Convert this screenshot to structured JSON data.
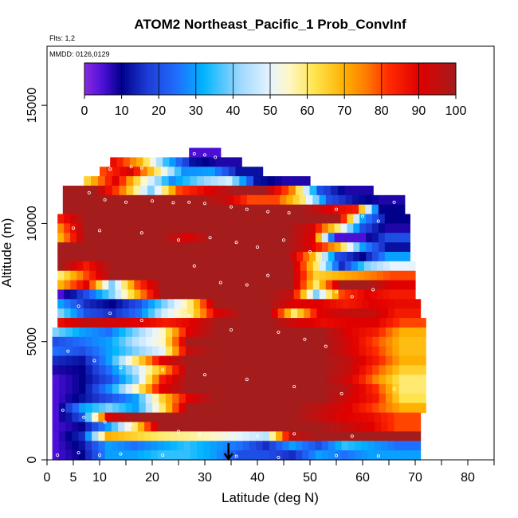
{
  "chart_data": {
    "type": "heatmap",
    "title": "ATOM2 Northeast_Pacific_1 Prob_ConvInf",
    "flights_label": "Flts: 1,2",
    "dates_label": "MMDD: 0126,0129",
    "xlabel": "Latitude (deg N)",
    "ylabel": "Altitude (m)",
    "xlim": [
      0,
      85
    ],
    "ylim": [
      0,
      17500
    ],
    "x_ticks": [
      0,
      5,
      10,
      20,
      30,
      40,
      50,
      60,
      70,
      80
    ],
    "x_minor_ticks": [
      15,
      25,
      35,
      45,
      55,
      65,
      75,
      85
    ],
    "y_ticks": [
      0,
      5000,
      10000,
      15000
    ],
    "colorbar": {
      "min": 0,
      "max": 100,
      "ticks": [
        0,
        10,
        20,
        30,
        40,
        50,
        60,
        70,
        80,
        90,
        100
      ]
    },
    "arrow_latitude": 34.5,
    "grid": false,
    "colorscale": [
      [
        0,
        "#8a2be2"
      ],
      [
        5,
        "#4b0fd6"
      ],
      [
        10,
        "#00008b"
      ],
      [
        17,
        "#1e3cd6"
      ],
      [
        25,
        "#1f6fff"
      ],
      [
        32,
        "#00b4ff"
      ],
      [
        42,
        "#9fd8ff"
      ],
      [
        50,
        "#e6f4ff"
      ],
      [
        55,
        "#fff7c8"
      ],
      [
        62,
        "#ffe44d"
      ],
      [
        70,
        "#ffb000"
      ],
      [
        76,
        "#ff7a00"
      ],
      [
        82,
        "#ff2a00"
      ],
      [
        90,
        "#e00000"
      ],
      [
        100,
        "#a51c1c"
      ]
    ],
    "rows": [
      {
        "alt": 12800,
        "lat": [
          27,
          33
        ],
        "values": [
          5,
          5
        ]
      },
      {
        "alt": 12400,
        "lat": [
          12,
          37
        ],
        "values": [
          88,
          70,
          35,
          12,
          8
        ]
      },
      {
        "alt": 12000,
        "lat": [
          10,
          41
        ],
        "values": [
          80,
          92,
          60,
          28,
          30,
          12
        ]
      },
      {
        "alt": 11600,
        "lat": [
          7,
          50
        ],
        "values": [
          65,
          90,
          55,
          28,
          40,
          48,
          12,
          8
        ]
      },
      {
        "alt": 11200,
        "lat": [
          3,
          62
        ],
        "values": [
          100,
          100,
          75,
          40,
          80,
          90,
          100,
          100,
          75,
          20,
          8
        ]
      },
      {
        "alt": 10800,
        "lat": [
          3,
          68
        ],
        "values": [
          100,
          100,
          100,
          100,
          100,
          100,
          95,
          80,
          80,
          60,
          20,
          12,
          8
        ]
      },
      {
        "alt": 10400,
        "lat": [
          3,
          68
        ],
        "values": [
          100,
          100,
          100,
          100,
          100,
          100,
          100,
          100,
          100,
          100,
          90,
          85,
          10
        ]
      },
      {
        "alt": 10000,
        "lat": [
          2,
          69
        ],
        "values": [
          85,
          100,
          100,
          100,
          100,
          100,
          100,
          100,
          100,
          100,
          100,
          100,
          30,
          10
        ]
      },
      {
        "alt": 9600,
        "lat": [
          2,
          69
        ],
        "values": [
          75,
          100,
          100,
          100,
          100,
          100,
          100,
          100,
          100,
          100,
          92,
          60,
          20,
          8
        ]
      },
      {
        "alt": 9200,
        "lat": [
          2,
          69
        ],
        "values": [
          70,
          100,
          100,
          100,
          100,
          90,
          100,
          100,
          100,
          100,
          90,
          5,
          5,
          20
        ]
      },
      {
        "alt": 8800,
        "lat": [
          2,
          69
        ],
        "values": [
          100,
          100,
          100,
          100,
          100,
          100,
          100,
          100,
          100,
          100,
          90,
          70,
          30,
          12
        ]
      },
      {
        "alt": 8400,
        "lat": [
          2,
          69
        ],
        "values": [
          100,
          100,
          100,
          100,
          100,
          100,
          100,
          100,
          100,
          100,
          70,
          20,
          10,
          30
        ]
      },
      {
        "alt": 8000,
        "lat": [
          2,
          70
        ],
        "values": [
          100,
          85,
          100,
          100,
          100,
          100,
          100,
          100,
          100,
          100,
          60,
          15,
          40,
          50
        ]
      },
      {
        "alt": 7600,
        "lat": [
          2,
          70
        ],
        "values": [
          60,
          80,
          100,
          100,
          100,
          100,
          100,
          100,
          100,
          100,
          65,
          70,
          75,
          80
        ]
      },
      {
        "alt": 7200,
        "lat": [
          2,
          70
        ],
        "values": [
          70,
          90,
          40,
          80,
          100,
          100,
          100,
          100,
          100,
          100,
          60,
          100,
          100,
          90
        ]
      },
      {
        "alt": 6800,
        "lat": [
          2,
          70
        ],
        "values": [
          5,
          20,
          40,
          70,
          100,
          100,
          100,
          100,
          100,
          95,
          40,
          80,
          90,
          85
        ]
      },
      {
        "alt": 6400,
        "lat": [
          2,
          71
        ],
        "values": [
          30,
          15,
          10,
          20,
          40,
          60,
          100,
          100,
          100,
          90,
          90,
          85,
          90,
          88
        ]
      },
      {
        "alt": 6000,
        "lat": [
          2,
          71
        ],
        "values": [
          40,
          20,
          15,
          25,
          48,
          60,
          90,
          100,
          100,
          60,
          90,
          95,
          95,
          85
        ]
      },
      {
        "alt": 5600,
        "lat": [
          2,
          72
        ],
        "values": [
          88,
          95,
          92,
          90,
          85,
          90,
          100,
          100,
          100,
          92,
          88,
          90,
          90,
          80
        ]
      },
      {
        "alt": 5200,
        "lat": [
          1,
          72
        ],
        "values": [
          40,
          30,
          25,
          40,
          55,
          90,
          100,
          100,
          100,
          100,
          100,
          90,
          85,
          70
        ]
      },
      {
        "alt": 4800,
        "lat": [
          1,
          72
        ],
        "values": [
          20,
          25,
          30,
          45,
          55,
          100,
          100,
          100,
          100,
          100,
          100,
          92,
          80,
          68
        ]
      },
      {
        "alt": 4400,
        "lat": [
          1,
          72
        ],
        "values": [
          25,
          20,
          30,
          40,
          50,
          95,
          100,
          100,
          100,
          100,
          100,
          92,
          82,
          68
        ]
      },
      {
        "alt": 4000,
        "lat": [
          1,
          72
        ],
        "values": [
          15,
          12,
          30,
          60,
          90,
          100,
          100,
          100,
          100,
          100,
          100,
          95,
          85,
          70
        ]
      },
      {
        "alt": 3600,
        "lat": [
          1,
          72
        ],
        "values": [
          8,
          10,
          25,
          45,
          70,
          100,
          100,
          100,
          100,
          100,
          100,
          95,
          80,
          65
        ]
      },
      {
        "alt": 3200,
        "lat": [
          1,
          72
        ],
        "values": [
          5,
          10,
          20,
          40,
          85,
          100,
          100,
          100,
          100,
          100,
          100,
          92,
          75,
          60
        ]
      },
      {
        "alt": 2800,
        "lat": [
          1,
          72
        ],
        "values": [
          5,
          10,
          28,
          55,
          90,
          100,
          100,
          100,
          100,
          100,
          100,
          95,
          82,
          60
        ]
      },
      {
        "alt": 2400,
        "lat": [
          1,
          72
        ],
        "values": [
          5,
          12,
          20,
          30,
          65,
          90,
          100,
          100,
          100,
          100,
          100,
          92,
          85,
          62
        ]
      },
      {
        "alt": 2000,
        "lat": [
          1,
          72
        ],
        "values": [
          5,
          30,
          40,
          30,
          60,
          100,
          100,
          100,
          100,
          100,
          95,
          90,
          80,
          70
        ]
      },
      {
        "alt": 1600,
        "lat": [
          1,
          71
        ],
        "values": [
          5,
          20,
          90,
          100,
          100,
          100,
          100,
          100,
          100,
          100,
          95,
          90,
          88,
          80
        ]
      },
      {
        "alt": 1200,
        "lat": [
          1,
          71
        ],
        "values": [
          5,
          10,
          30,
          60,
          100,
          100,
          100,
          100,
          100,
          100,
          100,
          95,
          90,
          80
        ]
      },
      {
        "alt": 800,
        "lat": [
          1,
          71
        ],
        "values": [
          5,
          15,
          70,
          65,
          60,
          58,
          55,
          50,
          45,
          95,
          100,
          100,
          100,
          100
        ]
      },
      {
        "alt": 400,
        "lat": [
          1,
          71
        ],
        "values": [
          5,
          12,
          30,
          25,
          30,
          35,
          30,
          25,
          15,
          30,
          20,
          35,
          30,
          25
        ]
      },
      {
        "alt": 0,
        "lat": [
          1,
          71
        ],
        "values": [
          5,
          10,
          30,
          30,
          35,
          35,
          30,
          20,
          20,
          15,
          30,
          25,
          30,
          30
        ]
      }
    ],
    "points": [
      [
        12,
        12300
      ],
      [
        16,
        12400
      ],
      [
        18,
        12350
      ],
      [
        28,
        12950
      ],
      [
        30,
        12900
      ],
      [
        32,
        12800
      ],
      [
        8,
        11300
      ],
      [
        11,
        11000
      ],
      [
        15,
        10900
      ],
      [
        20,
        10950
      ],
      [
        24,
        10880
      ],
      [
        27,
        10900
      ],
      [
        30,
        10850
      ],
      [
        35,
        10700
      ],
      [
        38,
        10600
      ],
      [
        42,
        10500
      ],
      [
        46,
        10450
      ],
      [
        55,
        10600
      ],
      [
        60,
        10300
      ],
      [
        63,
        10100
      ],
      [
        66,
        10900
      ],
      [
        5,
        9800
      ],
      [
        10,
        9700
      ],
      [
        18,
        9600
      ],
      [
        25,
        9300
      ],
      [
        31,
        9400
      ],
      [
        36,
        9200
      ],
      [
        40,
        9000
      ],
      [
        45,
        9300
      ],
      [
        50,
        8800
      ],
      [
        28,
        8200
      ],
      [
        33,
        7500
      ],
      [
        38,
        7400
      ],
      [
        42,
        7800
      ],
      [
        55,
        7100
      ],
      [
        58,
        6900
      ],
      [
        62,
        7200
      ],
      [
        6,
        6500
      ],
      [
        12,
        6200
      ],
      [
        18,
        5900
      ],
      [
        27,
        6100
      ],
      [
        35,
        5500
      ],
      [
        44,
        5400
      ],
      [
        49,
        5100
      ],
      [
        53,
        4800
      ],
      [
        4,
        4600
      ],
      [
        9,
        4200
      ],
      [
        14,
        3900
      ],
      [
        22,
        3800
      ],
      [
        30,
        3600
      ],
      [
        38,
        3400
      ],
      [
        47,
        3100
      ],
      [
        56,
        2800
      ],
      [
        66,
        3000
      ],
      [
        3,
        2100
      ],
      [
        7,
        1800
      ],
      [
        11,
        1600
      ],
      [
        16,
        1500
      ],
      [
        25,
        1200
      ],
      [
        29,
        1100
      ],
      [
        40,
        1000
      ],
      [
        47,
        1100
      ],
      [
        58,
        1000
      ],
      [
        2,
        200
      ],
      [
        6,
        300
      ],
      [
        10,
        200
      ],
      [
        14,
        250
      ],
      [
        22,
        200
      ],
      [
        36,
        150
      ],
      [
        44,
        100
      ],
      [
        55,
        180
      ],
      [
        63,
        160
      ]
    ]
  }
}
